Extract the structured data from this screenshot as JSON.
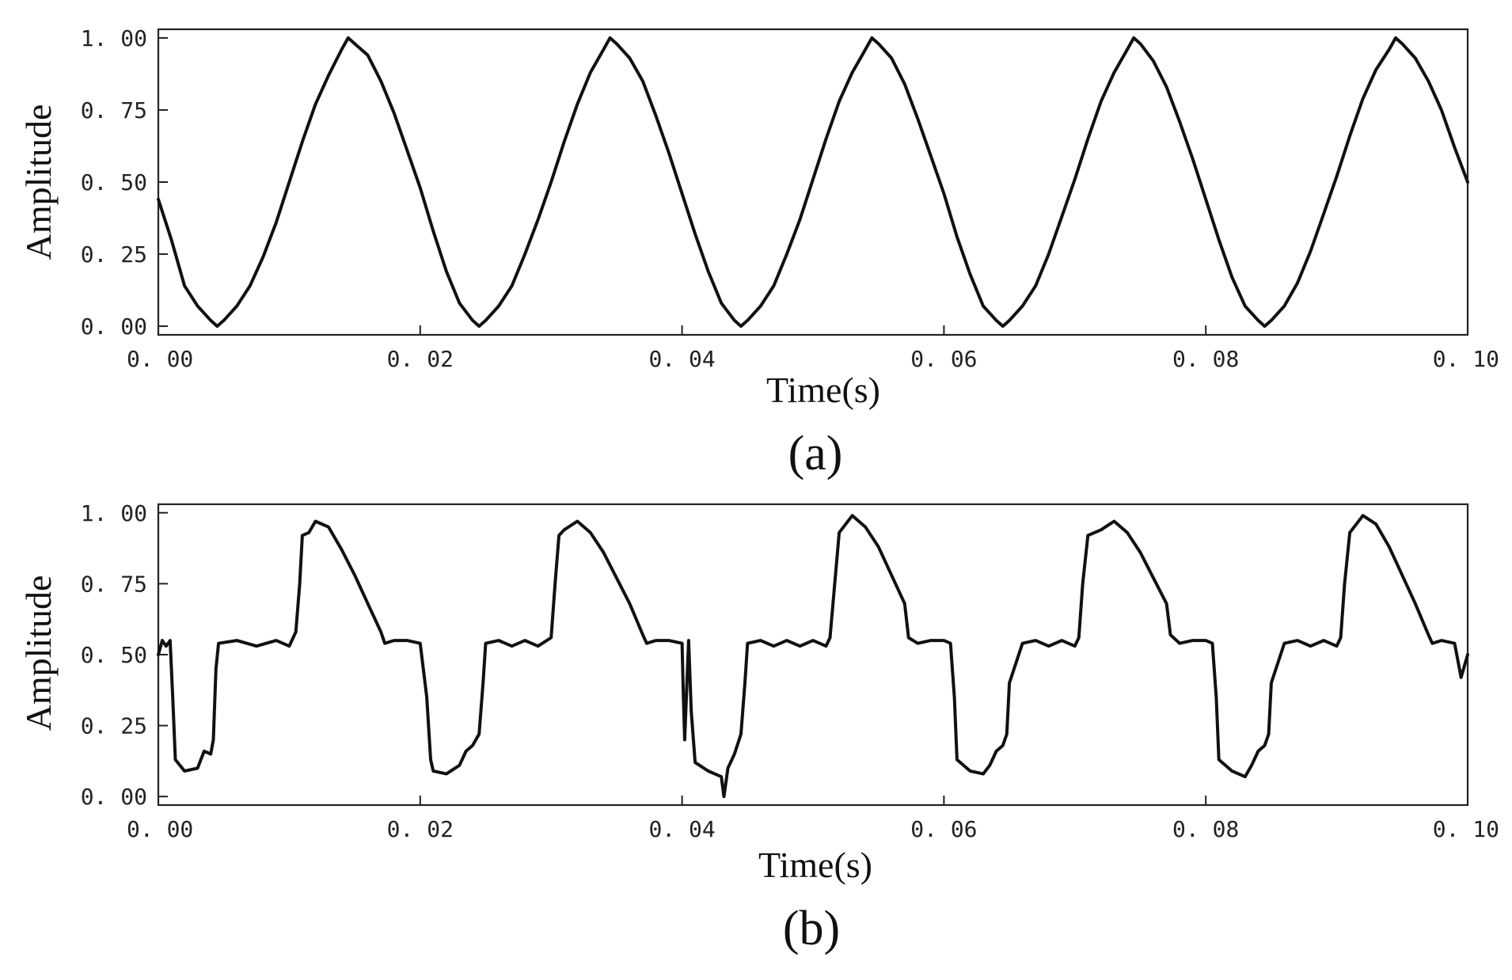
{
  "chart_data": [
    {
      "type": "line",
      "panel_label": "(a)",
      "xlabel": "Time(s)",
      "ylabel": "Amplitude",
      "xlim": [
        0,
        0.1
      ],
      "ylim": [
        -0.03,
        1.03
      ],
      "x_ticks": [
        0.0,
        0.02,
        0.04,
        0.06,
        0.08,
        0.1
      ],
      "x_tick_labels": [
        "0. 00",
        "0. 02",
        "0. 04",
        "0. 06",
        "0. 08",
        "0. 10"
      ],
      "y_ticks": [
        0.0,
        0.25,
        0.5,
        0.75,
        1.0
      ],
      "y_tick_labels": [
        "0. 00",
        "0. 25",
        "0. 50",
        "0. 75",
        "1. 00"
      ],
      "grid": false,
      "line_color": "#111111",
      "series": [
        {
          "x": [
            0.0,
            0.001,
            0.002,
            0.003,
            0.004,
            0.0045,
            0.005,
            0.006,
            0.007,
            0.008,
            0.009,
            0.01,
            0.011,
            0.012,
            0.013,
            0.014,
            0.0145,
            0.015,
            0.016,
            0.017,
            0.018,
            0.019,
            0.02,
            0.021,
            0.022,
            0.023,
            0.024,
            0.0245,
            0.025,
            0.026,
            0.027,
            0.028,
            0.029,
            0.03,
            0.031,
            0.032,
            0.033,
            0.034,
            0.0345,
            0.035,
            0.036,
            0.037,
            0.038,
            0.039,
            0.04,
            0.041,
            0.042,
            0.043,
            0.044,
            0.0445,
            0.045,
            0.046,
            0.047,
            0.048,
            0.049,
            0.05,
            0.051,
            0.052,
            0.053,
            0.054,
            0.0545,
            0.055,
            0.056,
            0.057,
            0.058,
            0.059,
            0.06,
            0.061,
            0.062,
            0.063,
            0.064,
            0.0645,
            0.065,
            0.066,
            0.067,
            0.068,
            0.069,
            0.07,
            0.071,
            0.072,
            0.073,
            0.074,
            0.0745,
            0.075,
            0.076,
            0.077,
            0.078,
            0.079,
            0.08,
            0.081,
            0.082,
            0.083,
            0.084,
            0.0845,
            0.085,
            0.086,
            0.087,
            0.088,
            0.089,
            0.09,
            0.091,
            0.092,
            0.093,
            0.094,
            0.0945,
            0.095,
            0.096,
            0.097,
            0.098,
            0.099,
            0.1
          ],
          "y": [
            0.44,
            0.3,
            0.14,
            0.07,
            0.02,
            0.0,
            0.02,
            0.07,
            0.14,
            0.24,
            0.36,
            0.5,
            0.64,
            0.77,
            0.87,
            0.96,
            1.0,
            0.98,
            0.94,
            0.85,
            0.74,
            0.61,
            0.48,
            0.33,
            0.19,
            0.08,
            0.02,
            0.0,
            0.02,
            0.07,
            0.14,
            0.25,
            0.37,
            0.5,
            0.64,
            0.77,
            0.88,
            0.96,
            1.0,
            0.98,
            0.93,
            0.85,
            0.73,
            0.6,
            0.46,
            0.32,
            0.19,
            0.08,
            0.02,
            0.0,
            0.02,
            0.07,
            0.14,
            0.25,
            0.37,
            0.51,
            0.65,
            0.78,
            0.88,
            0.96,
            1.0,
            0.98,
            0.93,
            0.84,
            0.72,
            0.59,
            0.46,
            0.31,
            0.18,
            0.07,
            0.02,
            0.0,
            0.02,
            0.07,
            0.14,
            0.25,
            0.38,
            0.51,
            0.65,
            0.78,
            0.88,
            0.96,
            1.0,
            0.98,
            0.92,
            0.83,
            0.71,
            0.58,
            0.44,
            0.3,
            0.17,
            0.07,
            0.02,
            0.0,
            0.02,
            0.07,
            0.15,
            0.26,
            0.39,
            0.52,
            0.66,
            0.79,
            0.89,
            0.96,
            1.0,
            0.98,
            0.93,
            0.85,
            0.75,
            0.62,
            0.5
          ]
        }
      ]
    },
    {
      "type": "line",
      "panel_label": "(b)",
      "xlabel": "Time(s)",
      "ylabel": "Amplitude",
      "xlim": [
        0,
        0.1
      ],
      "ylim": [
        -0.03,
        1.03
      ],
      "x_ticks": [
        0.0,
        0.02,
        0.04,
        0.06,
        0.08,
        0.1
      ],
      "x_tick_labels": [
        "0. 00",
        "0. 02",
        "0. 04",
        "0. 06",
        "0. 08",
        "0. 10"
      ],
      "y_ticks": [
        0.0,
        0.25,
        0.5,
        0.75,
        1.0
      ],
      "y_tick_labels": [
        "0. 00",
        "0. 25",
        "0. 50",
        "0. 75",
        "1. 00"
      ],
      "grid": false,
      "line_color": "#111111",
      "series": [
        {
          "x": [
            0.0,
            0.0003,
            0.0006,
            0.0009,
            0.0011,
            0.0013,
            0.002,
            0.003,
            0.0035,
            0.004,
            0.0042,
            0.0044,
            0.0046,
            0.006,
            0.0075,
            0.009,
            0.01,
            0.0105,
            0.0108,
            0.011,
            0.0115,
            0.012,
            0.013,
            0.014,
            0.015,
            0.016,
            0.017,
            0.0173,
            0.018,
            0.019,
            0.02,
            0.0205,
            0.0208,
            0.021,
            0.022,
            0.023,
            0.0235,
            0.024,
            0.0245,
            0.0248,
            0.025,
            0.026,
            0.027,
            0.028,
            0.029,
            0.03,
            0.0303,
            0.0306,
            0.031,
            0.032,
            0.033,
            0.034,
            0.035,
            0.036,
            0.037,
            0.0373,
            0.038,
            0.039,
            0.04,
            0.0401,
            0.0402,
            0.0405,
            0.0407,
            0.041,
            0.042,
            0.0425,
            0.043,
            0.0432,
            0.0435,
            0.044,
            0.0445,
            0.0448,
            0.045,
            0.046,
            0.047,
            0.048,
            0.049,
            0.05,
            0.051,
            0.0513,
            0.052,
            0.053,
            0.054,
            0.055,
            0.056,
            0.057,
            0.0573,
            0.058,
            0.059,
            0.06,
            0.0605,
            0.0608,
            0.061,
            0.062,
            0.063,
            0.0635,
            0.064,
            0.0645,
            0.0648,
            0.065,
            0.066,
            0.067,
            0.068,
            0.069,
            0.07,
            0.0703,
            0.0706,
            0.071,
            0.072,
            0.073,
            0.074,
            0.075,
            0.076,
            0.077,
            0.0773,
            0.078,
            0.079,
            0.08,
            0.0805,
            0.0808,
            0.081,
            0.082,
            0.083,
            0.0835,
            0.084,
            0.0845,
            0.0848,
            0.085,
            0.086,
            0.087,
            0.088,
            0.089,
            0.09,
            0.0903,
            0.0906,
            0.091,
            0.092,
            0.093,
            0.094,
            0.095,
            0.096,
            0.097,
            0.0973,
            0.098,
            0.099,
            0.0995,
            0.1
          ],
          "y": [
            0.5,
            0.55,
            0.53,
            0.55,
            0.35,
            0.13,
            0.09,
            0.1,
            0.16,
            0.15,
            0.2,
            0.45,
            0.54,
            0.55,
            0.53,
            0.55,
            0.53,
            0.58,
            0.75,
            0.92,
            0.93,
            0.97,
            0.95,
            0.87,
            0.78,
            0.68,
            0.58,
            0.54,
            0.55,
            0.55,
            0.54,
            0.35,
            0.13,
            0.09,
            0.08,
            0.11,
            0.16,
            0.18,
            0.22,
            0.4,
            0.54,
            0.55,
            0.53,
            0.55,
            0.53,
            0.56,
            0.75,
            0.92,
            0.94,
            0.97,
            0.93,
            0.86,
            0.77,
            0.68,
            0.57,
            0.54,
            0.55,
            0.55,
            0.54,
            0.35,
            0.2,
            0.55,
            0.3,
            0.12,
            0.09,
            0.08,
            0.07,
            0.0,
            0.1,
            0.15,
            0.22,
            0.4,
            0.54,
            0.55,
            0.53,
            0.55,
            0.53,
            0.55,
            0.53,
            0.56,
            0.93,
            0.99,
            0.95,
            0.88,
            0.78,
            0.68,
            0.56,
            0.54,
            0.55,
            0.55,
            0.54,
            0.35,
            0.13,
            0.09,
            0.08,
            0.11,
            0.16,
            0.18,
            0.22,
            0.4,
            0.54,
            0.55,
            0.53,
            0.55,
            0.53,
            0.56,
            0.75,
            0.92,
            0.94,
            0.97,
            0.93,
            0.86,
            0.77,
            0.68,
            0.57,
            0.54,
            0.55,
            0.55,
            0.54,
            0.35,
            0.13,
            0.09,
            0.07,
            0.11,
            0.16,
            0.18,
            0.22,
            0.4,
            0.54,
            0.55,
            0.53,
            0.55,
            0.53,
            0.56,
            0.75,
            0.93,
            0.99,
            0.96,
            0.88,
            0.78,
            0.68,
            0.57,
            0.54,
            0.55,
            0.54,
            0.42,
            0.5
          ]
        }
      ]
    }
  ]
}
